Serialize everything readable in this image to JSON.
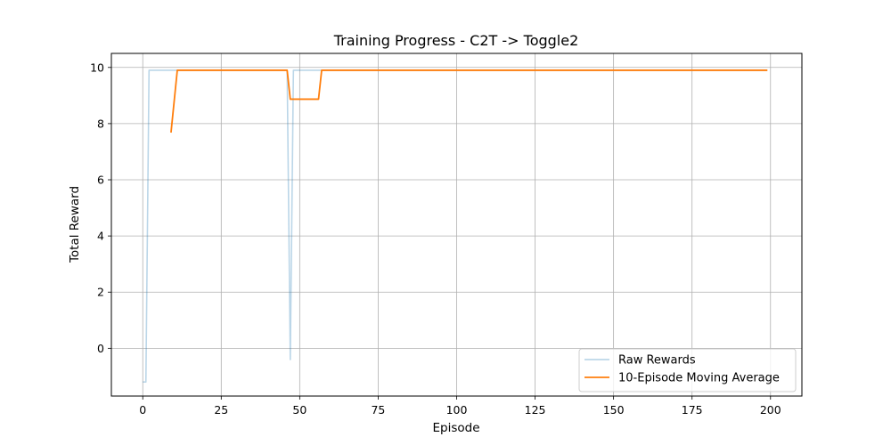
{
  "chart_data": {
    "type": "line",
    "title": "Training Progress - C2T -> Toggle2",
    "xlabel": "Episode",
    "ylabel": "Total Reward",
    "xlim": [
      -10,
      210
    ],
    "ylim": [
      -1.7,
      10.5
    ],
    "xticks": [
      0,
      25,
      50,
      75,
      100,
      125,
      150,
      175,
      200
    ],
    "yticks": [
      0,
      2,
      4,
      6,
      8,
      10
    ],
    "grid": true,
    "legend_position": "bottom-right",
    "series": [
      {
        "name": "Raw Rewards",
        "color": "#1f77b4",
        "opacity": 0.3,
        "points": [
          [
            0,
            -1.2
          ],
          [
            1,
            -1.2
          ],
          [
            2,
            9.9
          ],
          [
            46,
            9.9
          ],
          [
            47,
            -0.4
          ],
          [
            48,
            9.9
          ],
          [
            199,
            9.9
          ]
        ]
      },
      {
        "name": "10-Episode Moving Average",
        "color": "#ff7f0e",
        "opacity": 1,
        "points": [
          [
            9,
            7.68
          ],
          [
            11,
            9.9
          ],
          [
            46,
            9.9
          ],
          [
            47,
            8.87
          ],
          [
            56,
            8.87
          ],
          [
            57,
            9.9
          ],
          [
            199,
            9.9
          ]
        ]
      }
    ]
  }
}
